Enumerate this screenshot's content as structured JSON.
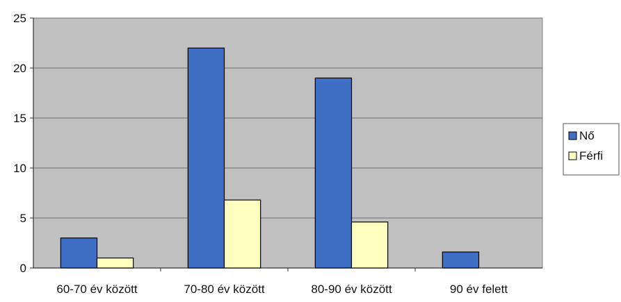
{
  "chart_data": {
    "type": "bar",
    "title": "",
    "xlabel": "",
    "ylabel": "",
    "categories": [
      "60-70 év között",
      "70-80 év között",
      "80-90 év között",
      "90 év felett"
    ],
    "series": [
      {
        "name": "Nő",
        "color": "#3f6fc4",
        "values": [
          3,
          22,
          19,
          1.6
        ]
      },
      {
        "name": "Férfi",
        "color": "#ffffc0",
        "values": [
          1,
          6.8,
          4.6,
          0
        ]
      }
    ],
    "ylim": [
      0,
      25
    ],
    "yticks": [
      0,
      5,
      10,
      15,
      20,
      25
    ],
    "grid": true,
    "plot_background": "#c0c0c0",
    "legend_position": "right"
  }
}
